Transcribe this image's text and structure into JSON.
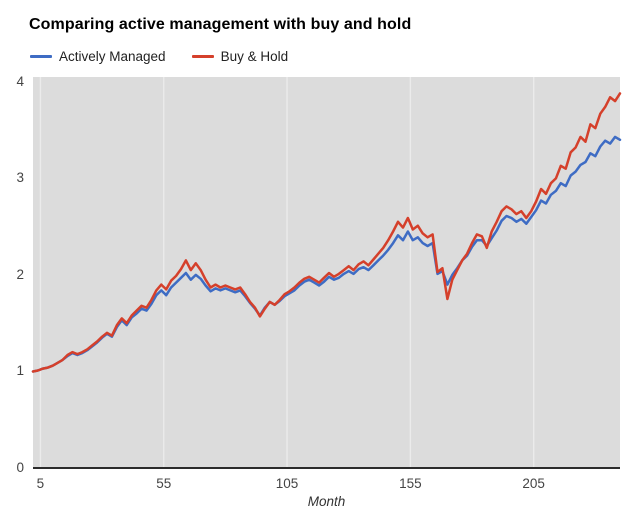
{
  "chart_data": {
    "type": "line",
    "title": "Comparing active management with buy and hold",
    "xlabel": "Month",
    "ylabel": "",
    "xlim": [
      2,
      240
    ],
    "ylim": [
      0,
      4.05
    ],
    "x_ticks": [
      5,
      55,
      105,
      155,
      205
    ],
    "y_ticks": [
      0,
      1,
      2,
      3,
      4
    ],
    "grid": "vertical-only",
    "legend_position": "top-left",
    "colors": {
      "plot_background": "#dcdcdc",
      "gridline": "#ebebeb",
      "axis_line": "#2b2b2b",
      "tick_label": "#444444",
      "title": "#000000"
    },
    "months": [
      2,
      4,
      6,
      8,
      10,
      12,
      14,
      16,
      18,
      20,
      22,
      24,
      26,
      28,
      30,
      32,
      34,
      36,
      38,
      40,
      42,
      44,
      46,
      48,
      50,
      52,
      54,
      56,
      58,
      60,
      62,
      64,
      66,
      68,
      70,
      72,
      74,
      76,
      78,
      80,
      82,
      84,
      86,
      88,
      90,
      92,
      94,
      96,
      98,
      100,
      102,
      104,
      106,
      108,
      110,
      112,
      114,
      116,
      118,
      120,
      122,
      124,
      126,
      128,
      130,
      132,
      134,
      136,
      138,
      140,
      142,
      144,
      146,
      148,
      150,
      152,
      154,
      156,
      158,
      160,
      162,
      164,
      166,
      168,
      170,
      172,
      174,
      176,
      178,
      180,
      182,
      184,
      186,
      188,
      190,
      192,
      194,
      196,
      198,
      200,
      202,
      204,
      206,
      208,
      210,
      212,
      214,
      216,
      218,
      220,
      222,
      224,
      226,
      228,
      230,
      232,
      234,
      236,
      238,
      240
    ],
    "series": [
      {
        "name": "Actively Managed",
        "color": "#3e6cc4",
        "values": [
          1.0,
          1.01,
          1.03,
          1.04,
          1.06,
          1.09,
          1.12,
          1.16,
          1.19,
          1.17,
          1.19,
          1.22,
          1.26,
          1.3,
          1.35,
          1.39,
          1.36,
          1.46,
          1.53,
          1.48,
          1.56,
          1.6,
          1.65,
          1.63,
          1.7,
          1.79,
          1.84,
          1.79,
          1.87,
          1.92,
          1.97,
          2.02,
          1.95,
          2.0,
          1.96,
          1.89,
          1.83,
          1.86,
          1.84,
          1.86,
          1.84,
          1.82,
          1.84,
          1.78,
          1.71,
          1.65,
          1.58,
          1.66,
          1.72,
          1.69,
          1.73,
          1.78,
          1.81,
          1.84,
          1.89,
          1.93,
          1.95,
          1.92,
          1.89,
          1.93,
          1.98,
          1.95,
          1.97,
          2.01,
          2.04,
          2.01,
          2.06,
          2.08,
          2.05,
          2.1,
          2.15,
          2.2,
          2.26,
          2.33,
          2.41,
          2.36,
          2.45,
          2.36,
          2.39,
          2.33,
          2.3,
          2.33,
          2.01,
          2.04,
          1.9,
          2.0,
          2.07,
          2.15,
          2.2,
          2.29,
          2.36,
          2.36,
          2.3,
          2.38,
          2.46,
          2.56,
          2.61,
          2.59,
          2.55,
          2.58,
          2.53,
          2.6,
          2.67,
          2.77,
          2.74,
          2.83,
          2.87,
          2.95,
          2.92,
          3.03,
          3.07,
          3.14,
          3.17,
          3.26,
          3.23,
          3.33,
          3.39,
          3.36,
          3.43,
          3.4
        ]
      },
      {
        "name": "Buy & Hold",
        "color": "#d5402b",
        "values": [
          1.0,
          1.01,
          1.03,
          1.04,
          1.06,
          1.09,
          1.12,
          1.17,
          1.2,
          1.18,
          1.2,
          1.23,
          1.27,
          1.31,
          1.36,
          1.4,
          1.37,
          1.48,
          1.55,
          1.5,
          1.58,
          1.63,
          1.68,
          1.66,
          1.74,
          1.84,
          1.9,
          1.85,
          1.94,
          1.99,
          2.06,
          2.15,
          2.05,
          2.12,
          2.05,
          1.95,
          1.87,
          1.9,
          1.87,
          1.89,
          1.87,
          1.85,
          1.87,
          1.8,
          1.72,
          1.66,
          1.57,
          1.65,
          1.72,
          1.69,
          1.74,
          1.8,
          1.83,
          1.87,
          1.92,
          1.96,
          1.98,
          1.95,
          1.92,
          1.97,
          2.02,
          1.98,
          2.01,
          2.05,
          2.09,
          2.05,
          2.11,
          2.14,
          2.1,
          2.16,
          2.22,
          2.28,
          2.36,
          2.45,
          2.55,
          2.49,
          2.59,
          2.47,
          2.51,
          2.43,
          2.39,
          2.42,
          2.03,
          2.07,
          1.75,
          1.95,
          2.05,
          2.15,
          2.22,
          2.33,
          2.42,
          2.4,
          2.28,
          2.45,
          2.55,
          2.66,
          2.71,
          2.68,
          2.63,
          2.66,
          2.59,
          2.66,
          2.76,
          2.89,
          2.84,
          2.95,
          3.0,
          3.13,
          3.1,
          3.27,
          3.32,
          3.43,
          3.38,
          3.56,
          3.52,
          3.67,
          3.74,
          3.84,
          3.8,
          3.88
        ]
      }
    ]
  }
}
